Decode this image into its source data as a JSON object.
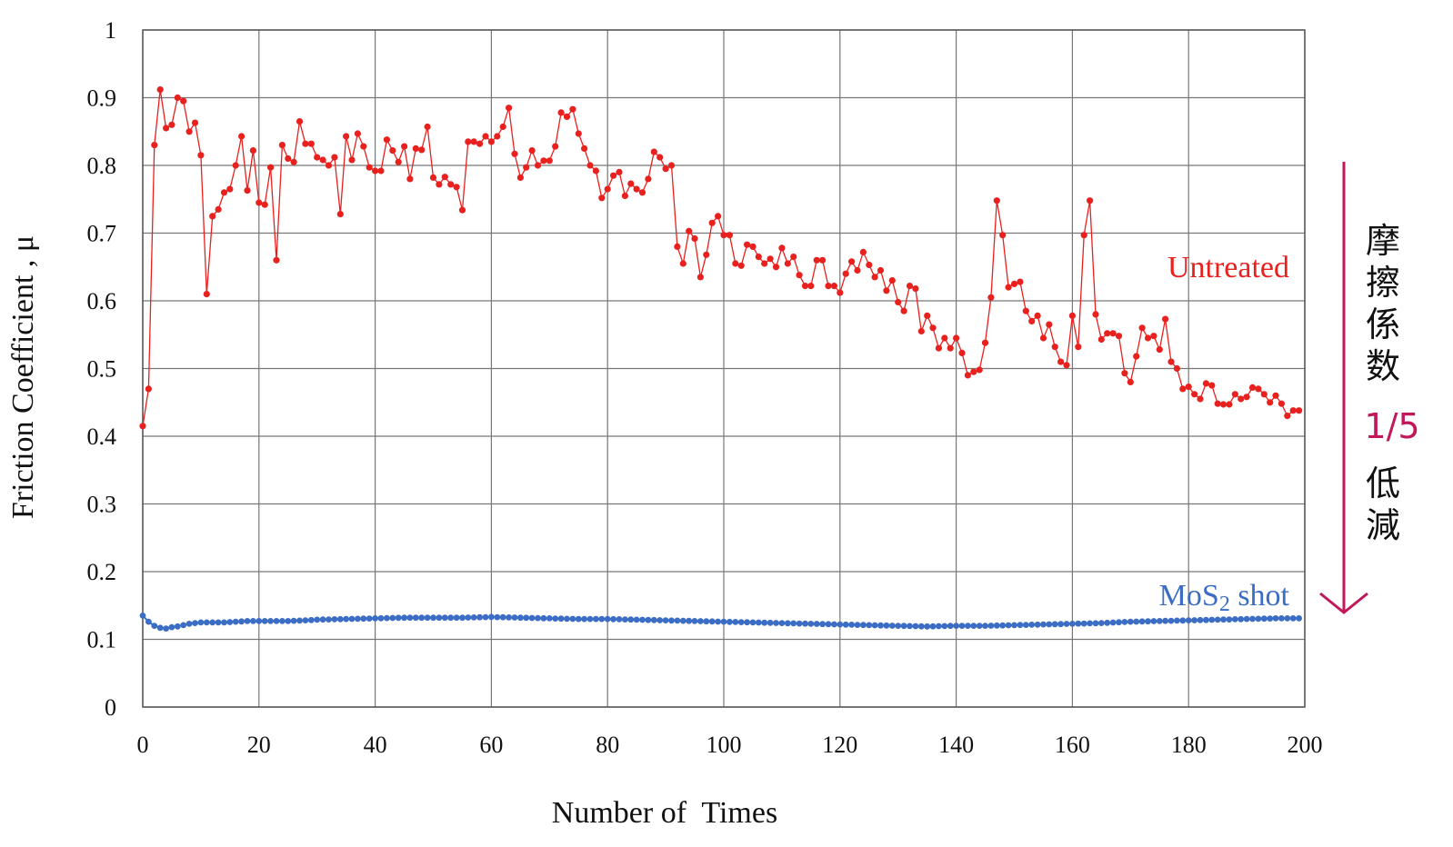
{
  "chart_data": {
    "type": "line",
    "xlabel": "Number of  Times",
    "ylabel": "Friction Coefficient , μ",
    "xlim": [
      0,
      200
    ],
    "ylim": [
      0,
      1
    ],
    "xticks": [
      0,
      20,
      40,
      60,
      80,
      100,
      120,
      140,
      160,
      180,
      200
    ],
    "yticks": [
      0,
      0.1,
      0.2,
      0.3,
      0.4,
      0.5,
      0.6,
      0.7,
      0.8,
      0.9,
      1
    ],
    "ytick_labels": [
      "0",
      "0.1",
      "0.2",
      "0.3",
      "0.4",
      "0.5",
      "0.6",
      "0.7",
      "0.8",
      "0.9",
      "1"
    ],
    "grid": true,
    "series": [
      {
        "name": "Untreated",
        "color": "#e8211f",
        "points": [
          [
            0,
            0.415
          ],
          [
            1,
            0.47
          ],
          [
            2,
            0.83
          ],
          [
            3,
            0.912
          ],
          [
            4,
            0.855
          ],
          [
            5,
            0.86
          ],
          [
            6,
            0.9
          ],
          [
            7,
            0.895
          ],
          [
            8,
            0.85
          ],
          [
            9,
            0.863
          ],
          [
            10,
            0.815
          ],
          [
            11,
            0.61
          ],
          [
            12,
            0.725
          ],
          [
            13,
            0.735
          ],
          [
            14,
            0.76
          ],
          [
            15,
            0.765
          ],
          [
            16,
            0.8
          ],
          [
            17,
            0.843
          ],
          [
            18,
            0.763
          ],
          [
            19,
            0.822
          ],
          [
            20,
            0.745
          ],
          [
            21,
            0.742
          ],
          [
            22,
            0.797
          ],
          [
            23,
            0.66
          ],
          [
            24,
            0.83
          ],
          [
            25,
            0.81
          ],
          [
            26,
            0.805
          ],
          [
            27,
            0.865
          ],
          [
            28,
            0.832
          ],
          [
            29,
            0.832
          ],
          [
            30,
            0.812
          ],
          [
            31,
            0.808
          ],
          [
            32,
            0.8
          ],
          [
            33,
            0.812
          ],
          [
            34,
            0.728
          ],
          [
            35,
            0.843
          ],
          [
            36,
            0.808
          ],
          [
            37,
            0.847
          ],
          [
            38,
            0.828
          ],
          [
            39,
            0.797
          ],
          [
            40,
            0.792
          ],
          [
            41,
            0.792
          ],
          [
            42,
            0.838
          ],
          [
            43,
            0.822
          ],
          [
            44,
            0.805
          ],
          [
            45,
            0.828
          ],
          [
            46,
            0.78
          ],
          [
            47,
            0.825
          ],
          [
            48,
            0.823
          ],
          [
            49,
            0.857
          ],
          [
            50,
            0.782
          ],
          [
            51,
            0.772
          ],
          [
            52,
            0.783
          ],
          [
            53,
            0.772
          ],
          [
            54,
            0.768
          ],
          [
            55,
            0.734
          ],
          [
            56,
            0.835
          ],
          [
            57,
            0.835
          ],
          [
            58,
            0.832
          ],
          [
            59,
            0.843
          ],
          [
            60,
            0.835
          ],
          [
            61,
            0.843
          ],
          [
            62,
            0.857
          ],
          [
            63,
            0.885
          ],
          [
            64,
            0.817
          ],
          [
            65,
            0.782
          ],
          [
            66,
            0.797
          ],
          [
            67,
            0.822
          ],
          [
            68,
            0.8
          ],
          [
            69,
            0.807
          ],
          [
            70,
            0.807
          ],
          [
            71,
            0.828
          ],
          [
            72,
            0.878
          ],
          [
            73,
            0.872
          ],
          [
            74,
            0.883
          ],
          [
            75,
            0.847
          ],
          [
            76,
            0.825
          ],
          [
            77,
            0.8
          ],
          [
            78,
            0.792
          ],
          [
            79,
            0.752
          ],
          [
            80,
            0.765
          ],
          [
            81,
            0.785
          ],
          [
            82,
            0.79
          ],
          [
            83,
            0.755
          ],
          [
            84,
            0.773
          ],
          [
            85,
            0.765
          ],
          [
            86,
            0.76
          ],
          [
            87,
            0.78
          ],
          [
            88,
            0.82
          ],
          [
            89,
            0.812
          ],
          [
            90,
            0.795
          ],
          [
            91,
            0.8
          ],
          [
            92,
            0.68
          ],
          [
            93,
            0.655
          ],
          [
            94,
            0.703
          ],
          [
            95,
            0.692
          ],
          [
            96,
            0.635
          ],
          [
            97,
            0.668
          ],
          [
            98,
            0.715
          ],
          [
            99,
            0.725
          ],
          [
            100,
            0.697
          ],
          [
            101,
            0.697
          ],
          [
            102,
            0.655
          ],
          [
            103,
            0.652
          ],
          [
            104,
            0.683
          ],
          [
            105,
            0.68
          ],
          [
            106,
            0.665
          ],
          [
            107,
            0.655
          ],
          [
            108,
            0.662
          ],
          [
            109,
            0.65
          ],
          [
            110,
            0.678
          ],
          [
            111,
            0.655
          ],
          [
            112,
            0.665
          ],
          [
            113,
            0.638
          ],
          [
            114,
            0.622
          ],
          [
            115,
            0.622
          ],
          [
            116,
            0.66
          ],
          [
            117,
            0.66
          ],
          [
            118,
            0.622
          ],
          [
            119,
            0.622
          ],
          [
            120,
            0.612
          ],
          [
            121,
            0.64
          ],
          [
            122,
            0.658
          ],
          [
            123,
            0.645
          ],
          [
            124,
            0.672
          ],
          [
            125,
            0.653
          ],
          [
            126,
            0.635
          ],
          [
            127,
            0.645
          ],
          [
            128,
            0.615
          ],
          [
            129,
            0.63
          ],
          [
            130,
            0.598
          ],
          [
            131,
            0.585
          ],
          [
            132,
            0.622
          ],
          [
            133,
            0.618
          ],
          [
            134,
            0.555
          ],
          [
            135,
            0.578
          ],
          [
            136,
            0.56
          ],
          [
            137,
            0.53
          ],
          [
            138,
            0.545
          ],
          [
            139,
            0.53
          ],
          [
            140,
            0.545
          ],
          [
            141,
            0.523
          ],
          [
            142,
            0.49
          ],
          [
            143,
            0.495
          ],
          [
            144,
            0.498
          ],
          [
            145,
            0.538
          ],
          [
            146,
            0.605
          ],
          [
            147,
            0.748
          ],
          [
            148,
            0.697
          ],
          [
            149,
            0.62
          ],
          [
            150,
            0.625
          ],
          [
            151,
            0.628
          ],
          [
            152,
            0.585
          ],
          [
            153,
            0.57
          ],
          [
            154,
            0.578
          ],
          [
            155,
            0.545
          ],
          [
            156,
            0.565
          ],
          [
            157,
            0.532
          ],
          [
            158,
            0.51
          ],
          [
            159,
            0.505
          ],
          [
            160,
            0.578
          ],
          [
            161,
            0.532
          ],
          [
            162,
            0.697
          ],
          [
            163,
            0.748
          ],
          [
            164,
            0.58
          ],
          [
            165,
            0.543
          ],
          [
            166,
            0.552
          ],
          [
            167,
            0.552
          ],
          [
            168,
            0.548
          ],
          [
            169,
            0.493
          ],
          [
            170,
            0.48
          ],
          [
            171,
            0.518
          ],
          [
            172,
            0.56
          ],
          [
            173,
            0.545
          ],
          [
            174,
            0.548
          ],
          [
            175,
            0.528
          ],
          [
            176,
            0.573
          ],
          [
            177,
            0.51
          ],
          [
            178,
            0.5
          ],
          [
            179,
            0.47
          ],
          [
            180,
            0.473
          ],
          [
            181,
            0.462
          ],
          [
            182,
            0.455
          ],
          [
            183,
            0.478
          ],
          [
            184,
            0.475
          ],
          [
            185,
            0.448
          ],
          [
            186,
            0.447
          ],
          [
            187,
            0.447
          ],
          [
            188,
            0.462
          ],
          [
            189,
            0.455
          ],
          [
            190,
            0.458
          ],
          [
            191,
            0.472
          ],
          [
            192,
            0.47
          ],
          [
            193,
            0.462
          ],
          [
            194,
            0.45
          ],
          [
            195,
            0.46
          ],
          [
            196,
            0.448
          ],
          [
            197,
            0.43
          ],
          [
            198,
            0.438
          ],
          [
            199,
            0.438
          ]
        ]
      },
      {
        "name": "MoS2 shot",
        "color": "#3b6dc4",
        "points": [
          [
            0,
            0.135
          ],
          [
            1,
            0.126
          ],
          [
            2,
            0.12
          ],
          [
            3,
            0.117
          ],
          [
            4,
            0.116
          ],
          [
            5,
            0.118
          ],
          [
            6,
            0.119
          ],
          [
            7,
            0.121
          ],
          [
            8,
            0.123
          ],
          [
            9,
            0.124
          ],
          [
            10,
            0.125
          ],
          [
            12,
            0.125
          ],
          [
            14,
            0.125
          ],
          [
            16,
            0.126
          ],
          [
            18,
            0.127
          ],
          [
            20,
            0.127
          ],
          [
            25,
            0.127
          ],
          [
            28,
            0.128
          ],
          [
            30,
            0.129
          ],
          [
            35,
            0.13
          ],
          [
            40,
            0.131
          ],
          [
            45,
            0.132
          ],
          [
            50,
            0.132
          ],
          [
            55,
            0.132
          ],
          [
            60,
            0.133
          ],
          [
            65,
            0.132
          ],
          [
            70,
            0.131
          ],
          [
            75,
            0.13
          ],
          [
            80,
            0.13
          ],
          [
            85,
            0.129
          ],
          [
            90,
            0.128
          ],
          [
            95,
            0.127
          ],
          [
            100,
            0.126
          ],
          [
            105,
            0.125
          ],
          [
            110,
            0.124
          ],
          [
            115,
            0.123
          ],
          [
            120,
            0.122
          ],
          [
            125,
            0.121
          ],
          [
            130,
            0.12
          ],
          [
            135,
            0.119
          ],
          [
            140,
            0.12
          ],
          [
            145,
            0.12
          ],
          [
            150,
            0.121
          ],
          [
            155,
            0.122
          ],
          [
            160,
            0.123
          ],
          [
            165,
            0.124
          ],
          [
            170,
            0.126
          ],
          [
            175,
            0.127
          ],
          [
            180,
            0.128
          ],
          [
            185,
            0.129
          ],
          [
            190,
            0.13
          ],
          [
            195,
            0.131
          ],
          [
            199,
            0.131
          ]
        ]
      }
    ],
    "series_labels": {
      "untreated": "Untreated",
      "mos2_main": "MoS",
      "mos2_sub": "2",
      "mos2_tail": " shot"
    },
    "annotation": {
      "chars": [
        "摩",
        "擦",
        "係",
        "数"
      ],
      "ratio": "1/5",
      "chars_after": [
        "低",
        "減"
      ],
      "arrow_color": "#c2185b"
    }
  }
}
